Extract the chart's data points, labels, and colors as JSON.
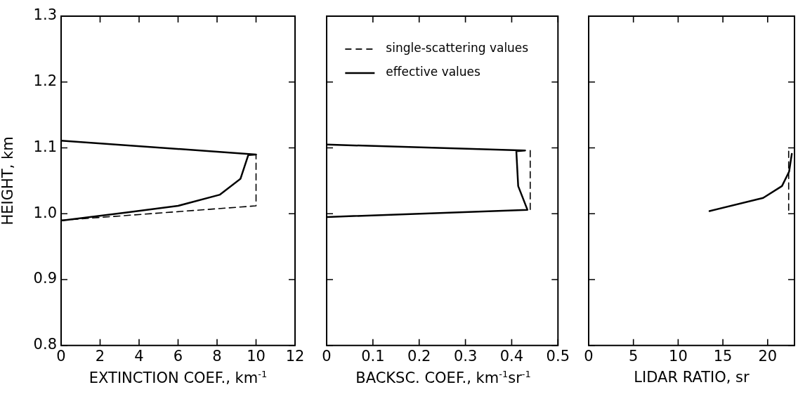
{
  "chart_data": [
    {
      "type": "line",
      "xlabel": "EXTINCTION COEF., km$^{-1}$",
      "ylabel": "HEIGHT, km",
      "xlim": [
        0,
        12
      ],
      "xticks": [
        0,
        2,
        4,
        6,
        8,
        10,
        12
      ],
      "ylim": [
        0.8,
        1.3
      ],
      "yticks": [
        0.8,
        0.9,
        {
          "value": 1,
          "label": "1.0"
        },
        1.1,
        1.2,
        1.3
      ],
      "grid": false,
      "legend": false,
      "marker": "none",
      "series": [
        {
          "color": "#000000",
          "line_style": "dashed",
          "x": [
            0,
            10,
            10
          ],
          "values": [
            0.99,
            1.012,
            1.09
          ]
        },
        {
          "color": "#000000",
          "line_style": "solid",
          "x": [
            0,
            10,
            9.6,
            9.2,
            8.15,
            6,
            3.35,
            0.1,
            0
          ],
          "values": [
            1.111,
            1.09,
            1.089,
            1.053,
            1.029,
            1.012,
            1.002,
            0.99,
            0.99
          ]
        }
      ]
    },
    {
      "type": "line",
      "xlabel": "BACKSC. COEF., km$^{-1}$sr$^{-1}$",
      "xlim": [
        0,
        0.5
      ],
      "xticks": [
        0,
        0.1,
        0.2,
        0.3,
        0.4,
        0.5
      ],
      "ylim": [
        0.8,
        1.3
      ],
      "yticks": [
        0.8,
        0.9,
        1,
        1.1,
        1.2,
        1.3
      ],
      "tick_labels": "x",
      "grid": false,
      "legend": "top",
      "marker": "none",
      "series": [
        {
          "name": "single-scattering values",
          "color": "#000000",
          "line_style": "dashed",
          "x": [
            0.44,
            0.44
          ],
          "values": [
            1.096,
            1.006
          ]
        },
        {
          "name": "effective values",
          "color": "#000000",
          "line_style": "solid",
          "x": [
            0,
            0.429,
            0.41,
            0.414,
            0.434,
            0
          ],
          "values": [
            1.105,
            1.096,
            1.095,
            1.042,
            1.006,
            0.995
          ]
        }
      ]
    },
    {
      "type": "line",
      "xlabel": "LIDAR RATIO, sr",
      "xlim": [
        0,
        23
      ],
      "xticks": [
        0,
        5,
        10,
        15,
        20
      ],
      "ylim": [
        0.8,
        1.3
      ],
      "yticks": [
        0.8,
        0.9,
        1,
        1.1,
        1.2,
        1.3
      ],
      "tick_labels": "x",
      "grid": false,
      "legend": false,
      "marker": "none",
      "series": [
        {
          "color": "#000000",
          "line_style": "dashed",
          "x": [
            22.35,
            22.35
          ],
          "values": [
            1.095,
            1.004
          ]
        },
        {
          "color": "#000000",
          "line_style": "solid",
          "x": [
            13.5,
            19.5,
            21.6,
            22.4,
            22.7
          ],
          "values": [
            1.004,
            1.024,
            1.042,
            1.064,
            1.091
          ]
        }
      ]
    }
  ]
}
